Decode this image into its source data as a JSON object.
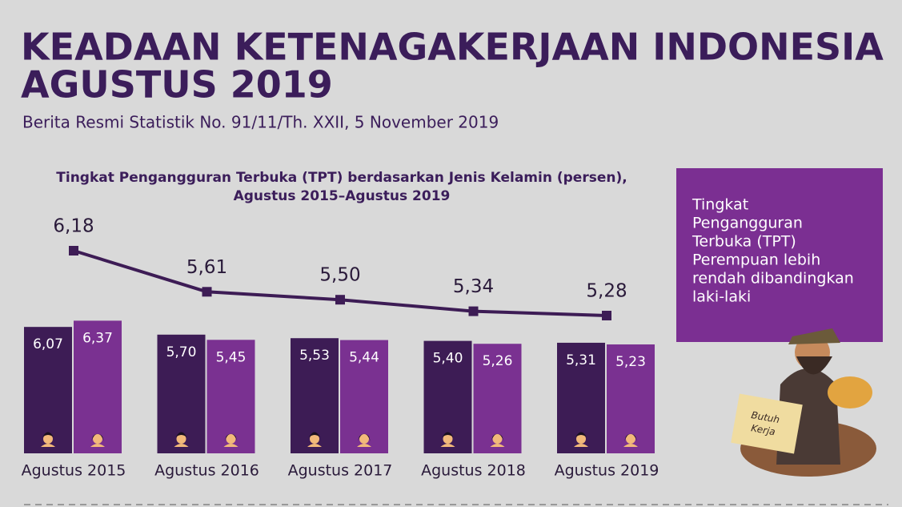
{
  "header": {
    "title": [
      "KEADAAN KETENAGAKERJAAN INDONESIA",
      "AGUSTUS 2019"
    ],
    "subtitle": "Berita Resmi Statistik No. 91/11/Th. XXII, 5 November 2019"
  },
  "chart_data": {
    "type": "bar",
    "title": [
      "Tingkat Pengangguran Terbuka (TPT) berdasarkan Jenis Kelamin (persen),",
      "Agustus 2015–Agustus 2019"
    ],
    "categories": [
      "Agustus 2015",
      "Agustus 2016",
      "Agustus 2017",
      "Agustus 2018",
      "Agustus 2019"
    ],
    "series": [
      {
        "color": "#3d1c55",
        "values": [
          6.07,
          5.7,
          5.53,
          5.4,
          5.31
        ],
        "value_labels": [
          "6,07",
          "5,70",
          "5,53",
          "5,40",
          "5,31"
        ]
      },
      {
        "color": "#7a3191",
        "values": [
          6.37,
          5.45,
          5.44,
          5.26,
          5.23
        ],
        "value_labels": [
          "6,37",
          "5,45",
          "5,44",
          "5,26",
          "5,23"
        ]
      },
      {
        "type": "line",
        "color": "#3d1c55",
        "values": [
          6.18,
          5.61,
          5.5,
          5.34,
          5.28
        ],
        "value_labels": [
          "6,18",
          "5,61",
          "5,50",
          "5,34",
          "5,28"
        ]
      }
    ]
  },
  "callout": {
    "lines": [
      "Tingkat",
      "Pengangguran",
      "Terbuka (TPT)",
      "Perempuan lebih",
      "rendah dibandingkan",
      "laki-laki"
    ]
  },
  "illustration": {
    "label": [
      "Butuh",
      "Kerja"
    ]
  }
}
